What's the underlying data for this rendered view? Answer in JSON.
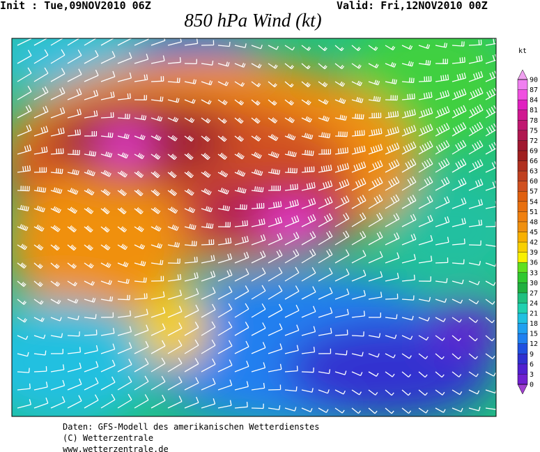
{
  "header": {
    "init": "Init : Tue,09NOV2010 06Z",
    "valid": "Valid: Fri,12NOV2010 00Z"
  },
  "title": "850 hPa Wind (kt)",
  "legend": {
    "unit": "kt",
    "labels": [
      0,
      3,
      6,
      9,
      12,
      15,
      18,
      21,
      24,
      27,
      30,
      33,
      36,
      39,
      42,
      45,
      48,
      51,
      54,
      57,
      60,
      63,
      66,
      69,
      72,
      75,
      78,
      81,
      84,
      87,
      90
    ],
    "colors": [
      "#7020d0",
      "#5020d0",
      "#3030d0",
      "#2050e0",
      "#2080f0",
      "#20a0f0",
      "#20c0e0",
      "#20d0b0",
      "#20c080",
      "#20b040",
      "#30c830",
      "#60e020",
      "#f8f000",
      "#f8d000",
      "#f8b000",
      "#f09010",
      "#f08010",
      "#e87010",
      "#e06010",
      "#d05020",
      "#c04020",
      "#b03020",
      "#a02020",
      "#a01830",
      "#b01850",
      "#c01870",
      "#d01890",
      "#e020c0",
      "#f050e0",
      "#f080f0"
    ],
    "under_color": "#a040d0",
    "over_color": "#f0a0f0"
  },
  "footer": [
    "Daten: GFS-Modell des amerikanischen Wetterdienstes",
    "(C) Wetterzentrale",
    "www.wetterzentrale.de"
  ]
}
